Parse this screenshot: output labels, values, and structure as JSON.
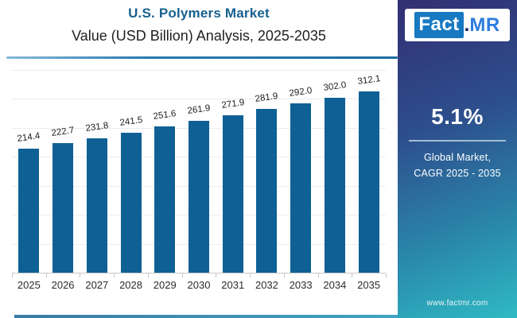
{
  "header": {
    "title": "U.S. Polymers Market",
    "subtitle": "Value (USD Billion) Analysis, 2025-2035"
  },
  "logo": {
    "fact": "Fact",
    "dot": ".",
    "mr": "MR"
  },
  "sidebar": {
    "cagr_value": "5.1%",
    "cagr_label_line1": "Global Market,",
    "cagr_label_line2": "CAGR 2025 - 2035",
    "website": "www.factmr.com"
  },
  "chart_data": {
    "type": "bar",
    "title": "U.S. Polymers Market",
    "subtitle": "Value (USD Billion) Analysis, 2025-2035",
    "xlabel": "",
    "ylabel": "Value (USD Billion)",
    "categories": [
      "2025",
      "2026",
      "2027",
      "2028",
      "2029",
      "2030",
      "2031",
      "2032",
      "2033",
      "2034",
      "2035"
    ],
    "values": [
      214.4,
      222.7,
      231.8,
      241.5,
      251.6,
      261.9,
      271.9,
      281.9,
      292.0,
      302.0,
      312.1
    ],
    "labels": [
      "214.4",
      "222.7",
      "231.8",
      "241.5",
      "251.6",
      "261.9",
      "271.9",
      "281.9",
      "292.0",
      "302.0",
      "312.1"
    ],
    "ylim": [
      0,
      350
    ],
    "gridline_step": 50,
    "grid": true,
    "legend": false,
    "bar_color": "#0f6094"
  },
  "colors": {
    "accent_blue": "#17618f",
    "bar": "#0f6094",
    "divider": "#1e6ca3",
    "gridline": "#ececec",
    "axis": "#c9c9c9",
    "sidebar_gradient_top": "#322f72",
    "sidebar_gradient_mid": "#2a87ab",
    "sidebar_gradient_bottom": "#2fbac3",
    "logo_fact_box": "#1779c2",
    "logo_mr_text": "#2c7de0",
    "logo_dot": "#1b1f5e",
    "bottom_strip_left": "#3a7ba5",
    "bottom_strip_right": "#42a3c2"
  }
}
